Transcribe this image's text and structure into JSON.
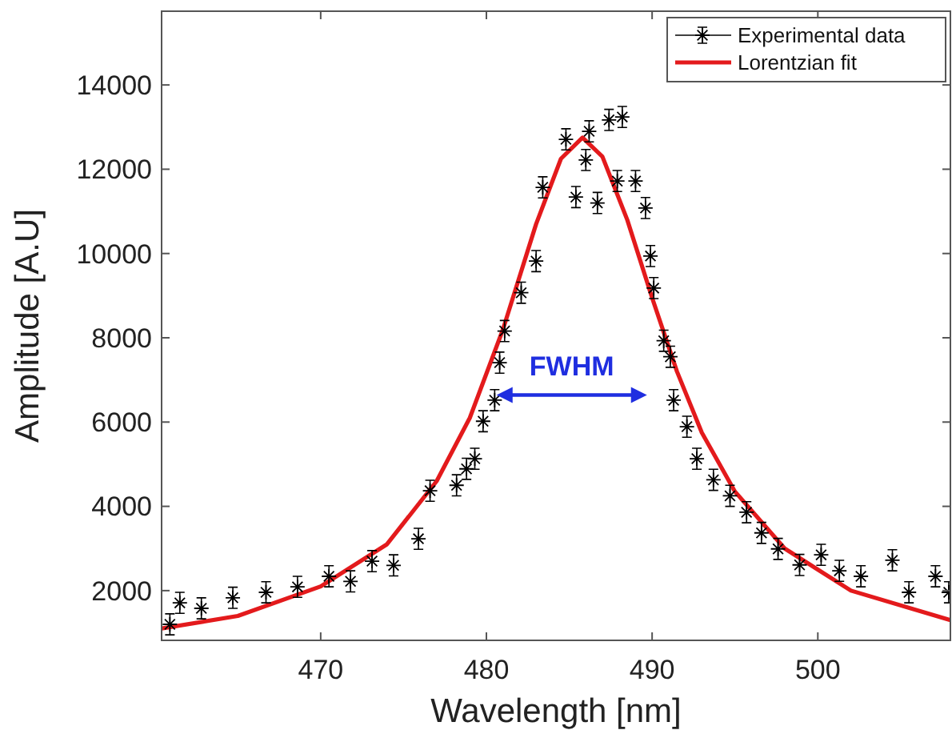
{
  "chart_data": {
    "type": "scatter",
    "xlabel": "Wavelength [nm]",
    "ylabel": "Amplitude [A.U]",
    "xlim": [
      460.4,
      508
    ],
    "xticks": [
      470,
      480,
      490,
      500
    ],
    "ylim": [
      820,
      15750
    ],
    "yticks": [
      2000,
      4000,
      6000,
      8000,
      10000,
      12000,
      14000
    ],
    "legend": "top right",
    "grid": false,
    "annotations": [
      "FWHM"
    ],
    "series": [
      {
        "name": "Experimental data",
        "type": "scatter",
        "marker": "cross",
        "color": "#000000",
        "x": [
          460.9,
          461.5,
          462.8,
          464.7,
          466.7,
          468.6,
          470.5,
          471.8,
          473.1,
          474.4,
          475.9,
          476.6,
          478.2,
          478.8,
          479.3,
          479.8,
          480.5,
          480.8,
          481.1,
          482.1,
          483.0,
          483.4,
          484.8,
          485.4,
          486.0,
          486.2,
          486.7,
          487.4,
          487.9,
          488.2,
          489.0,
          489.6,
          489.9,
          490.1,
          490.7,
          491.1,
          491.3,
          492.1,
          492.7,
          493.7,
          494.7,
          495.7,
          496.6,
          497.6,
          498.9,
          500.2,
          501.3,
          502.6,
          504.5,
          505.5,
          507.1,
          507.9
        ],
        "values": [
          1200,
          1710,
          1580,
          1830,
          1960,
          2090,
          2340,
          2220,
          2700,
          2600,
          3230,
          4370,
          4500,
          4890,
          5130,
          6020,
          6520,
          7410,
          8160,
          9070,
          9820,
          11570,
          12710,
          11340,
          12220,
          12900,
          11200,
          13170,
          11720,
          13240,
          11720,
          11080,
          9940,
          9180,
          7930,
          7550,
          6520,
          5890,
          5130,
          4630,
          4250,
          3860,
          3370,
          2990,
          2610,
          2850,
          2470,
          2340,
          2720,
          1960,
          2340,
          1960
        ],
        "errors": [
          250,
          250,
          250,
          250,
          250,
          250,
          250,
          250,
          250,
          250,
          250,
          250,
          250,
          250,
          250,
          250,
          250,
          250,
          250,
          250,
          250,
          250,
          250,
          250,
          250,
          250,
          250,
          250,
          250,
          250,
          250,
          250,
          250,
          250,
          250,
          250,
          250,
          250,
          250,
          250,
          250,
          250,
          250,
          250,
          250,
          250,
          250,
          250,
          250,
          250,
          250,
          250
        ]
      },
      {
        "name": "Lorentzian fit",
        "type": "line",
        "line_style": "solid",
        "color": "#e31a1c",
        "x": [
          460.4,
          465,
          470,
          474,
          477,
          479,
          481,
          483,
          484.5,
          485.8,
          487,
          488.5,
          490,
          491.5,
          493,
          495,
          498,
          502,
          508
        ],
        "values": [
          1100,
          1400,
          2100,
          3100,
          4600,
          6100,
          8200,
          10700,
          12250,
          12750,
          12300,
          10800,
          8950,
          7200,
          5750,
          4350,
          3000,
          2000,
          1300
        ]
      }
    ]
  }
}
